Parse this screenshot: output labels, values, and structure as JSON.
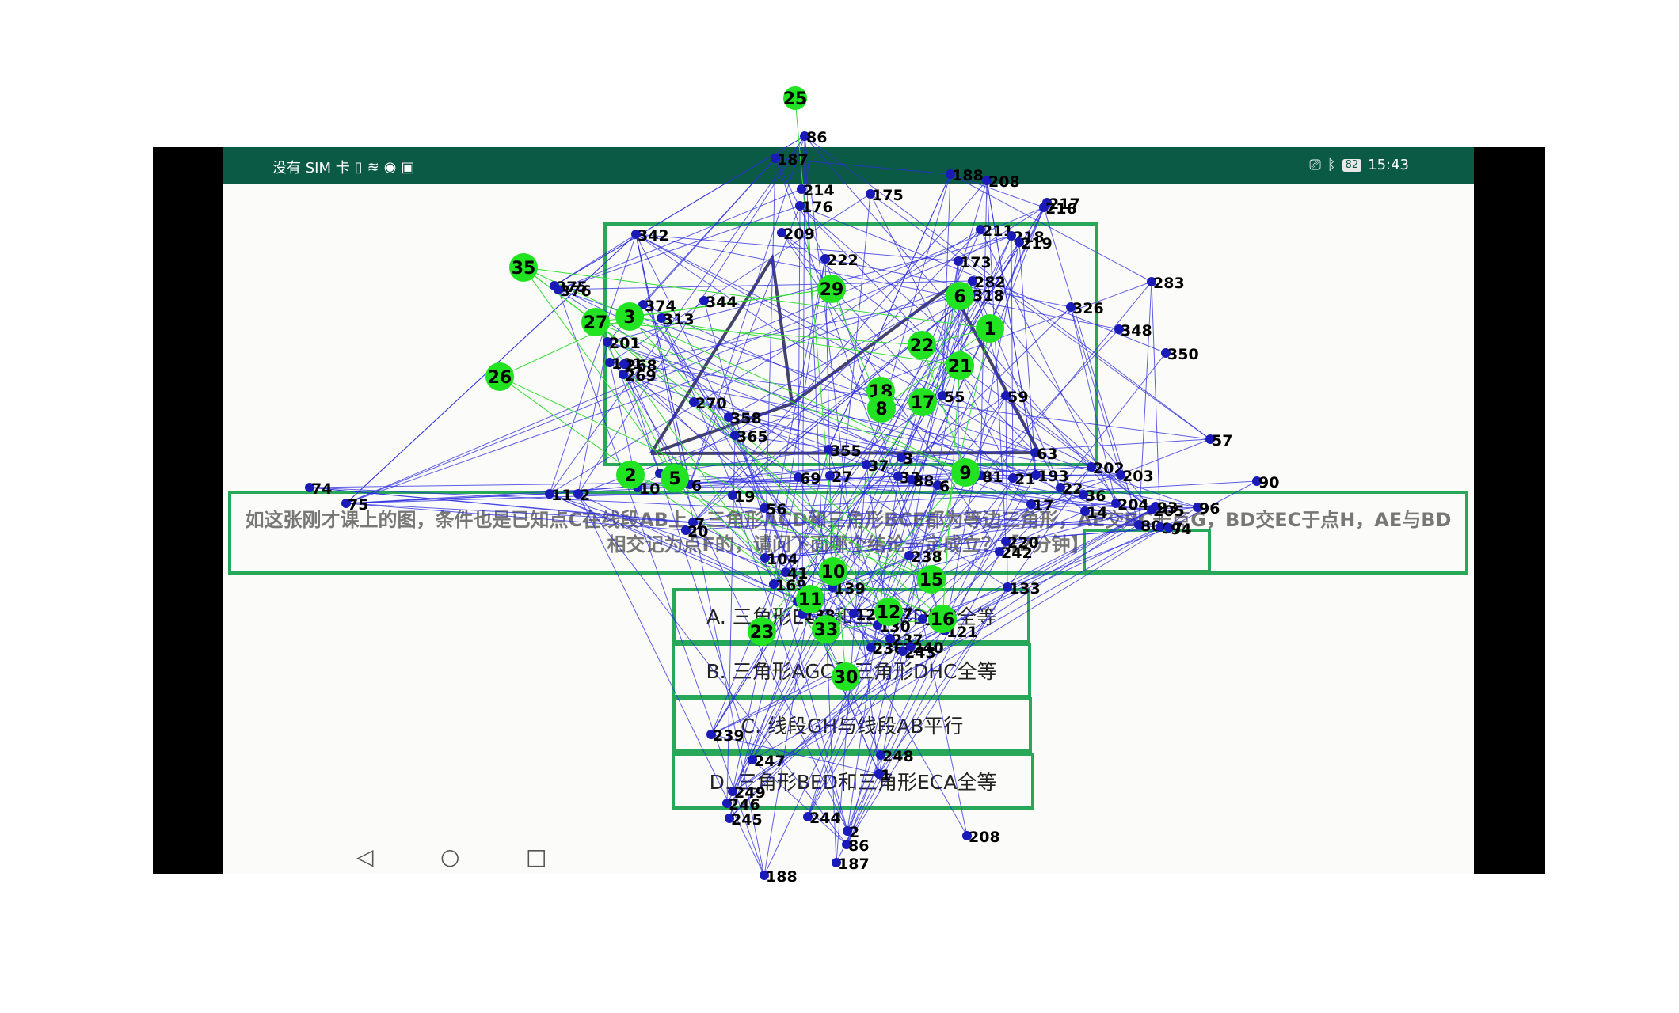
{
  "status_bar": {
    "carrier": "没有 SIM 卡",
    "battery": "82",
    "time": "15:43",
    "icons": [
      "sim-icon",
      "wifi-icon",
      "notification-icon",
      "cast-icon",
      "bluetooth-icon",
      "battery-icon"
    ]
  },
  "question": {
    "text": "如这张刚才课上的图，条件也是已知点C在线段AB上，三角形ACD和三角形BCE都为等边三角形，AE交BC于点G，BD交EC于点H，AE与BD相交记为点F的，请问下面哪个结论一定成立？【2分钟】"
  },
  "options": [
    {
      "label": "A. 三角形EGC和三角形DHC全等"
    },
    {
      "label": "B. 三角形AGC和三角形DHC全等"
    },
    {
      "label": "C. 线段GH与线段AB平行"
    },
    {
      "label": "D. 三角形BED和三角形ECA全等"
    }
  ],
  "nav": {
    "back": "◁",
    "home": "○",
    "recents": "□"
  },
  "colors": {
    "status_bar": "#0b5a45",
    "box_border": "#27a859",
    "green_node": "#22e322",
    "blue_node": "#1a1ab8",
    "edge_blue": "#2a2ae0",
    "edge_green": "#33dd33"
  },
  "overlay": {
    "green_labels": [
      "25",
      "35",
      "27",
      "3",
      "26",
      "29",
      "1",
      "6",
      "22",
      "21",
      "18",
      "8",
      "17",
      "2",
      "5",
      "9",
      "11",
      "10",
      "15",
      "12",
      "16",
      "23",
      "33",
      "30"
    ],
    "blue_labels": [
      "86",
      "187",
      "188",
      "208",
      "214",
      "176",
      "175",
      "217",
      "216",
      "342",
      "209",
      "211",
      "218",
      "219",
      "222",
      "173",
      "283",
      "375",
      "376",
      "374",
      "344",
      "313",
      "348",
      "326",
      "282",
      "318",
      "201",
      "191",
      "268",
      "269",
      "270",
      "358",
      "365",
      "355",
      "3",
      "55",
      "59",
      "63",
      "57",
      "350",
      "202",
      "193",
      "203",
      "204",
      "205",
      "90",
      "74",
      "75",
      "11",
      "2",
      "10",
      "4",
      "6",
      "7",
      "20",
      "19",
      "56",
      "69",
      "27",
      "37",
      "33",
      "88",
      "6",
      "86",
      "81",
      "21",
      "17",
      "22",
      "36",
      "14",
      "80",
      "97",
      "96",
      "93",
      "94",
      "104",
      "41",
      "169",
      "34",
      "139",
      "138",
      "122",
      "117",
      "18",
      "121",
      "133",
      "130",
      "237",
      "236",
      "242",
      "238",
      "220",
      "243",
      "240",
      "239",
      "247",
      "249",
      "246",
      "245",
      "244",
      "248",
      "1",
      "2"
    ]
  }
}
